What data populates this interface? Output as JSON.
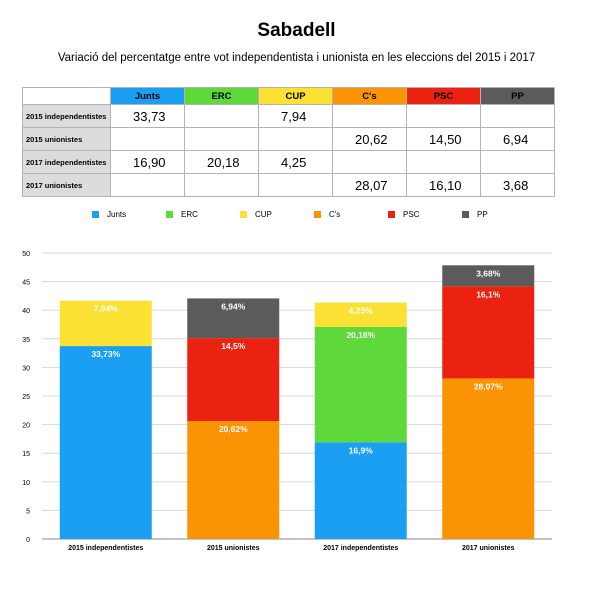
{
  "title": "Sabadell",
  "subtitle": "Variació del percentatge entre vot independentista i unionista en les eleccions del 2015 i 2017",
  "table": {
    "columns": [
      "Junts",
      "ERC",
      "CUP",
      "C's",
      "PSC",
      "PP"
    ],
    "column_colors": [
      "#1a9ff2",
      "#5ed83a",
      "#fbe133",
      "#fb9404",
      "#ec2211",
      "#5b5b5b"
    ],
    "rows": [
      {
        "label": "2015 independentistes",
        "cells": [
          "33,73",
          "",
          "7,94",
          "",
          "",
          ""
        ]
      },
      {
        "label": "2015 unionistes",
        "cells": [
          "",
          "",
          "",
          "20,62",
          "14,50",
          "6,94"
        ]
      },
      {
        "label": "2017 independentistes",
        "cells": [
          "16,90",
          "20,18",
          "4,25",
          "",
          "",
          ""
        ]
      },
      {
        "label": "2017 unionistes",
        "cells": [
          "",
          "",
          "",
          "28,07",
          "16,10",
          "3,68"
        ]
      }
    ]
  },
  "chart_data": {
    "type": "bar",
    "stacked": true,
    "title": "Sabadell",
    "subtitle": "Variació del percentatge entre vot independentista i unionista en les eleccions del 2015 i 2017",
    "categories": [
      "2015 independentistes",
      "2015 unionistes",
      "2017 independentistes",
      "2017 unionistes"
    ],
    "ylim": [
      0,
      50
    ],
    "yticks": [
      0,
      5,
      10,
      15,
      20,
      25,
      30,
      35,
      40,
      45,
      50
    ],
    "grid": true,
    "legend_position": "top",
    "series": [
      {
        "name": "Junts",
        "color": "#1a9ff2",
        "values": [
          33.73,
          0,
          16.9,
          0
        ],
        "labels": [
          "33,73%",
          "",
          "16,9%",
          ""
        ]
      },
      {
        "name": "ERC",
        "color": "#5ed83a",
        "values": [
          0,
          0,
          20.18,
          0
        ],
        "labels": [
          "",
          "",
          "20,18%",
          ""
        ]
      },
      {
        "name": "CUP",
        "color": "#fbe133",
        "values": [
          7.94,
          0,
          4.25,
          0
        ],
        "labels": [
          "7,94%",
          "",
          "4,25%",
          ""
        ]
      },
      {
        "name": "C's",
        "color": "#fb9404",
        "values": [
          0,
          20.62,
          0,
          28.07
        ],
        "labels": [
          "",
          "20,62%",
          "",
          "28,07%"
        ]
      },
      {
        "name": "PSC",
        "color": "#ec2211",
        "values": [
          0,
          14.5,
          0,
          16.1
        ],
        "labels": [
          "",
          "14,5%",
          "",
          "16,1%"
        ]
      },
      {
        "name": "PP",
        "color": "#5b5b5b",
        "values": [
          0,
          6.94,
          0,
          3.68
        ],
        "labels": [
          "",
          "6,94%",
          "",
          "3,68%"
        ]
      }
    ]
  }
}
